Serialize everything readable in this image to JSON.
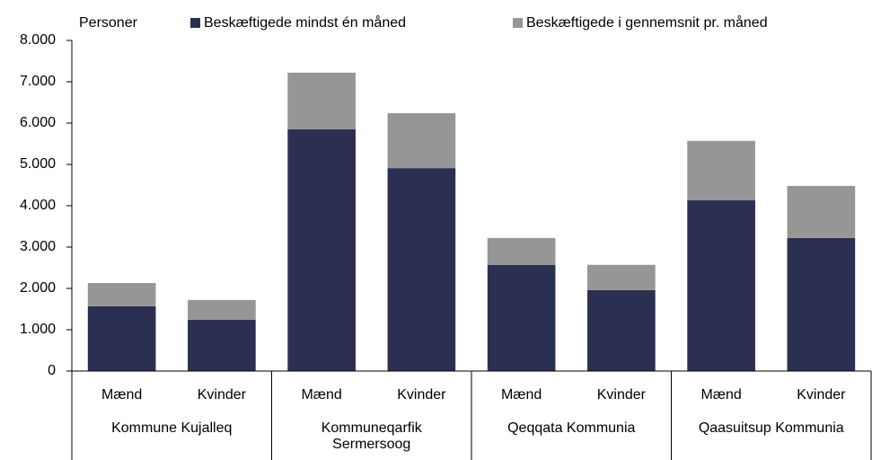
{
  "chart_data": {
    "type": "bar",
    "stacked": true,
    "y_label": "Personer",
    "categories": [
      "Mænd",
      "Kvinder",
      "Mænd",
      "Kvinder",
      "Mænd",
      "Kvinder",
      "Mænd",
      "Kvinder"
    ],
    "groups": [
      {
        "name": "Kommune Kujalleq",
        "span": 2
      },
      {
        "name": "Kommuneqarfik Sermersoog",
        "span": 2
      },
      {
        "name": "Qeqqata Kommunia",
        "span": 2
      },
      {
        "name": "Qaasuitsup Kommunia",
        "span": 2
      }
    ],
    "series": [
      {
        "name": "Beskæftigede mindst én måned",
        "color": "#2b3052",
        "values": [
          1570,
          1240,
          5850,
          4910,
          2570,
          1960,
          4130,
          3220
        ]
      },
      {
        "name": "Beskæftigede i gennemsnit pr. måned",
        "color": "#969696",
        "values": [
          560,
          480,
          1370,
          1330,
          650,
          610,
          1440,
          1260
        ]
      }
    ],
    "ylim": [
      0,
      8000
    ],
    "yticks": [
      0,
      {
        "value": 1000,
        "label": "1.000"
      },
      {
        "value": 2000,
        "label": "2.000"
      },
      {
        "value": 3000,
        "label": "3.000"
      },
      {
        "value": 4000,
        "label": "4.000"
      },
      {
        "value": 5000,
        "label": "5.000"
      },
      {
        "value": 6000,
        "label": "6.000"
      },
      {
        "value": 7000,
        "label": "7.000"
      },
      {
        "value": 8000,
        "label": "8.000"
      }
    ],
    "grid": false
  }
}
